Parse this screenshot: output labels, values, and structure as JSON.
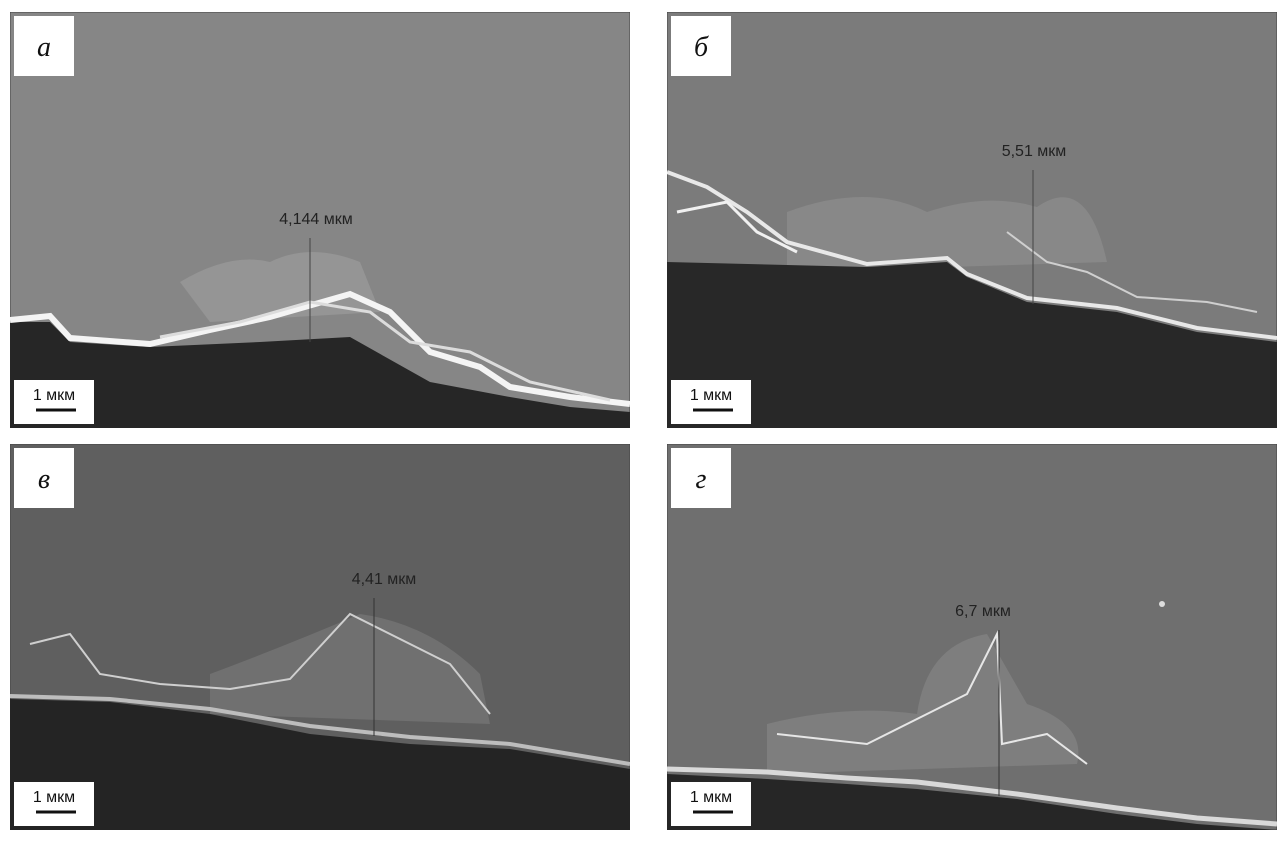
{
  "panels": [
    {
      "label": "а",
      "measurement": "4,144 мкм",
      "scale": "1 мкм"
    },
    {
      "label": "б",
      "measurement": "5,51 мкм",
      "scale": "1 мкм"
    },
    {
      "label": "в",
      "measurement": "4,41 мкм",
      "scale": "1 мкм"
    },
    {
      "label": "г",
      "measurement": "6,7 мкм",
      "scale": "1 мкм"
    }
  ]
}
